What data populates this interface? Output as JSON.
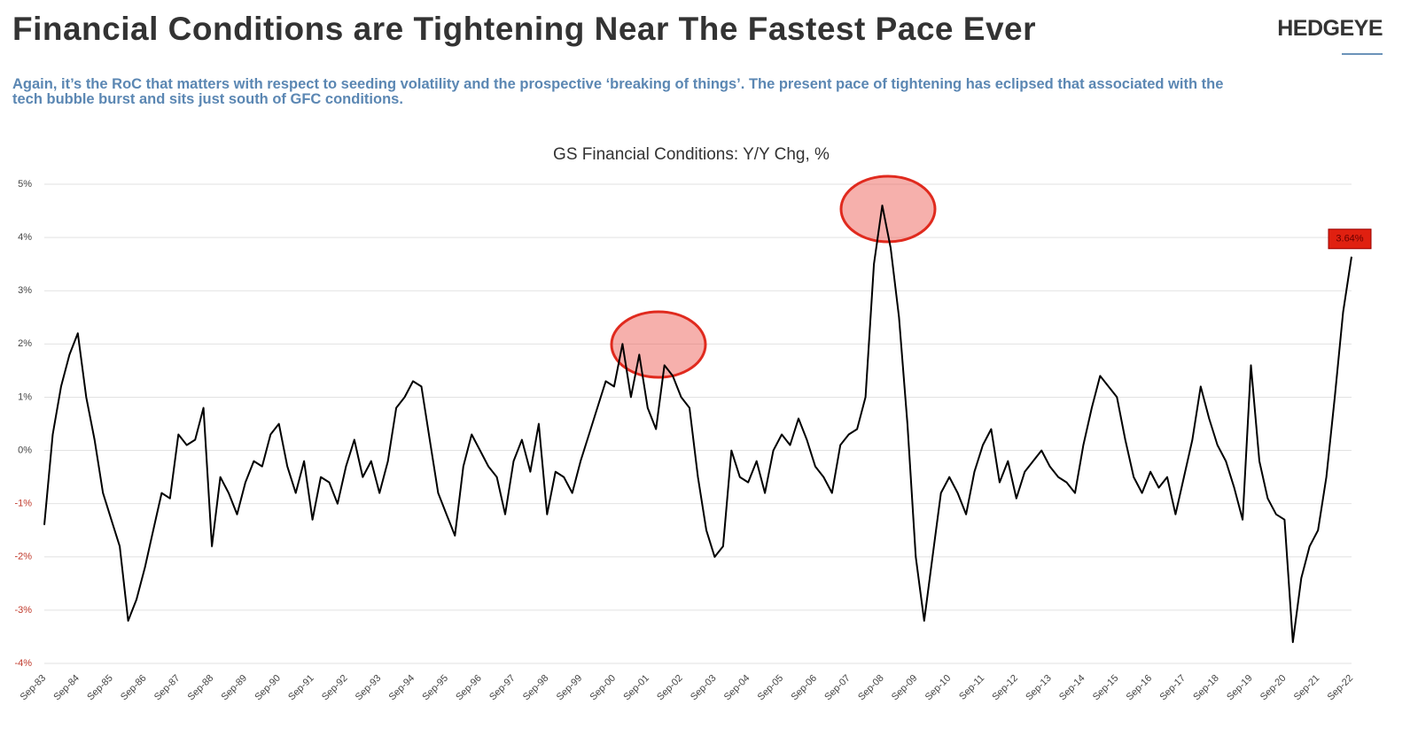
{
  "header": {
    "title": "Financial Conditions are Tightening Near The Fastest Pace Ever",
    "logo": "HEDGEYE",
    "subtitle": "Again, it’s the RoC that matters with respect to seeding volatility and the prospective ‘breaking of things’.  The present pace of tightening has eclipsed that associated with the tech bubble burst and sits just south of GFC conditions."
  },
  "chart_data": {
    "type": "line",
    "title": "GS Financial Conditions: Y/Y Chg, %",
    "categories": [
      "Sep-83",
      null,
      null,
      null,
      "Sep-84",
      null,
      null,
      null,
      "Sep-85",
      null,
      null,
      null,
      "Sep-86",
      null,
      null,
      null,
      "Sep-87",
      null,
      null,
      null,
      "Sep-88",
      null,
      null,
      null,
      "Sep-89",
      null,
      null,
      null,
      "Sep-90",
      null,
      null,
      null,
      "Sep-91",
      null,
      null,
      null,
      "Sep-92",
      null,
      null,
      null,
      "Sep-93",
      null,
      null,
      null,
      "Sep-94",
      null,
      null,
      null,
      "Sep-95",
      null,
      null,
      null,
      "Sep-96",
      null,
      null,
      null,
      "Sep-97",
      null,
      null,
      null,
      "Sep-98",
      null,
      null,
      null,
      "Sep-99",
      null,
      null,
      null,
      "Sep-00",
      null,
      null,
      null,
      "Sep-01",
      null,
      null,
      null,
      "Sep-02",
      null,
      null,
      null,
      "Sep-03",
      null,
      null,
      null,
      "Sep-04",
      null,
      null,
      null,
      "Sep-05",
      null,
      null,
      null,
      "Sep-06",
      null,
      null,
      null,
      "Sep-07",
      null,
      null,
      null,
      "Sep-08",
      null,
      null,
      null,
      "Sep-09",
      null,
      null,
      null,
      "Sep-10",
      null,
      null,
      null,
      "Sep-11",
      null,
      null,
      null,
      "Sep-12",
      null,
      null,
      null,
      "Sep-13",
      null,
      null,
      null,
      "Sep-14",
      null,
      null,
      null,
      "Sep-15",
      null,
      null,
      null,
      "Sep-16",
      null,
      null,
      null,
      "Sep-17",
      null,
      null,
      null,
      "Sep-18",
      null,
      null,
      null,
      "Sep-19",
      null,
      null,
      null,
      "Sep-20",
      null,
      null,
      null,
      "Sep-21",
      null,
      null,
      null,
      "Sep-22"
    ],
    "series": [
      {
        "color": "#000000",
        "values": [
          -1.4,
          0.3,
          1.2,
          1.8,
          2.2,
          1.0,
          0.2,
          -0.8,
          -1.3,
          -1.8,
          -3.2,
          -2.8,
          -2.2,
          -1.5,
          -0.8,
          -0.9,
          0.3,
          0.1,
          0.2,
          0.8,
          -1.8,
          -0.5,
          -0.8,
          -1.2,
          -0.6,
          -0.2,
          -0.3,
          0.3,
          0.5,
          -0.3,
          -0.8,
          -0.2,
          -1.3,
          -0.5,
          -0.6,
          -1.0,
          -0.3,
          0.2,
          -0.5,
          -0.2,
          -0.8,
          -0.2,
          0.8,
          1.0,
          1.3,
          1.2,
          0.2,
          -0.8,
          -1.2,
          -1.6,
          -0.3,
          0.3,
          0.0,
          -0.3,
          -0.5,
          -1.2,
          -0.2,
          0.2,
          -0.4,
          0.5,
          -1.2,
          -0.4,
          -0.5,
          -0.8,
          -0.2,
          0.3,
          0.8,
          1.3,
          1.2,
          2.0,
          1.0,
          1.8,
          0.8,
          0.4,
          1.6,
          1.4,
          1.0,
          0.8,
          -0.5,
          -1.5,
          -2.0,
          -1.8,
          0.0,
          -0.5,
          -0.6,
          -0.2,
          -0.8,
          0.0,
          0.3,
          0.1,
          0.6,
          0.2,
          -0.3,
          -0.5,
          -0.8,
          0.1,
          0.3,
          0.4,
          1.0,
          3.5,
          4.6,
          3.8,
          2.5,
          0.5,
          -2.0,
          -3.2,
          -2.0,
          -0.8,
          -0.5,
          -0.8,
          -1.2,
          -0.4,
          0.1,
          0.4,
          -0.6,
          -0.2,
          -0.9,
          -0.4,
          -0.2,
          0.0,
          -0.3,
          -0.5,
          -0.6,
          -0.8,
          0.1,
          0.8,
          1.4,
          1.2,
          1.0,
          0.2,
          -0.5,
          -0.8,
          -0.4,
          -0.7,
          -0.5,
          -1.2,
          -0.5,
          0.2,
          1.2,
          0.6,
          0.1,
          -0.2,
          -0.7,
          -1.3,
          1.6,
          -0.2,
          -0.9,
          -1.2,
          -1.3,
          -3.6,
          -2.4,
          -1.8,
          -1.5,
          -0.5,
          1.0,
          2.6,
          3.64
        ],
        "value_labels": [
          null,
          null,
          null,
          null,
          null,
          null,
          null,
          null,
          null,
          null,
          null,
          null,
          null,
          null,
          null,
          null,
          null,
          null,
          null,
          null,
          null,
          null,
          null,
          null,
          null,
          null,
          null,
          null,
          null,
          null,
          null,
          null,
          null,
          null,
          null,
          null,
          null,
          null,
          null,
          null,
          null,
          null,
          null,
          null,
          null,
          null,
          null,
          null,
          null,
          null,
          null,
          null,
          null,
          null,
          null,
          null,
          null,
          null,
          null,
          null,
          null,
          null,
          null,
          null,
          null,
          null,
          null,
          null,
          null,
          null,
          null,
          null,
          null,
          null,
          null,
          null,
          null,
          null,
          null,
          null,
          null,
          null,
          null,
          null,
          null,
          null,
          null,
          null,
          null,
          null,
          null,
          null,
          null,
          null,
          null,
          null,
          null,
          null,
          null,
          null,
          null,
          null,
          null,
          null,
          null,
          null,
          null,
          null,
          null,
          null,
          null,
          null,
          null,
          null,
          null,
          null,
          null,
          null,
          null,
          null,
          null,
          null,
          null,
          null,
          null,
          null,
          null,
          null,
          null,
          null,
          null,
          null,
          null,
          null,
          null,
          null,
          null,
          null,
          null,
          null,
          null,
          null,
          null,
          null,
          null,
          null,
          null,
          null,
          null,
          null,
          null,
          null,
          null,
          null,
          null,
          null,
          "3.64%"
        ]
      }
    ],
    "ylim": [
      -4,
      5
    ],
    "yticks": [
      {
        "value": -4,
        "label": "-4%"
      },
      {
        "value": -3,
        "label": "-3%"
      },
      {
        "value": -2,
        "label": "-2%"
      },
      {
        "value": -1,
        "label": "-1%"
      },
      {
        "value": 0,
        "label": "0%"
      },
      {
        "value": 1,
        "label": "1%"
      },
      {
        "value": 2,
        "label": "2%"
      },
      {
        "value": 3,
        "label": "3%"
      },
      {
        "value": 4,
        "label": "4%"
      },
      {
        "value": 5,
        "label": "5%"
      }
    ],
    "grid": true,
    "negative_tick_color": "#c0392b",
    "value_label_color": "#e02010"
  }
}
